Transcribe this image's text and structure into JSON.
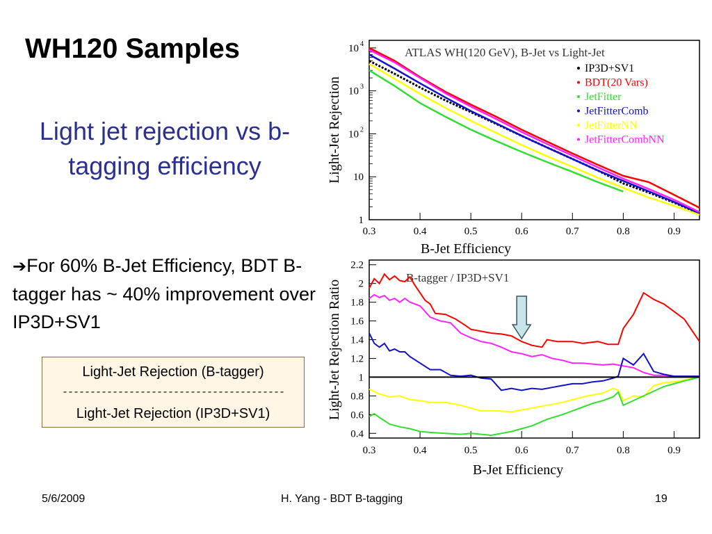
{
  "slide": {
    "title": "WH120 Samples",
    "subtitle": "Light jet rejection vs b-tagging efficiency",
    "note_arrow": "➔",
    "note_text": "For 60% B-Jet Efficiency, BDT B-tagger has ~ 40% improvement over IP3D+SV1",
    "formula": {
      "numerator": "Light-Jet Rejection (B-tagger)",
      "bar": "----------------------------------------",
      "denominator": "Light-Jet Rejection (IP3D+SV1)"
    },
    "footer": {
      "date": "5/6/2009",
      "center": "H. Yang - BDT B-tagging",
      "page": "19"
    }
  },
  "chart_data": [
    {
      "type": "line",
      "title": "ATLAS WH(120 GeV), B-Jet vs Light-Jet",
      "xlabel": "B-Jet Efficiency",
      "ylabel": "Light-Jet Rejection",
      "xlim": [
        0.3,
        0.95
      ],
      "ylim": [
        1,
        15000
      ],
      "yscale": "log",
      "xticks": [
        "0.3",
        "0.4",
        "0.5",
        "0.6",
        "0.7",
        "0.8",
        "0.9"
      ],
      "xtick_values": [
        0.3,
        0.4,
        0.5,
        0.6,
        0.7,
        0.8,
        0.9
      ],
      "yticks": [
        {
          "value": 1,
          "base": "1",
          "exp": ""
        },
        {
          "value": 10,
          "base": "10",
          "exp": ""
        },
        {
          "value": 100,
          "base": "10",
          "exp": "2"
        },
        {
          "value": 1000,
          "base": "10",
          "exp": "3"
        },
        {
          "value": 10000,
          "base": "10",
          "exp": "4"
        }
      ],
      "legend_position": "top-right",
      "series": [
        {
          "name": "IP3D+SV1",
          "color": "#000000",
          "x": [
            0.3,
            0.35,
            0.4,
            0.45,
            0.5,
            0.55,
            0.6,
            0.65,
            0.7,
            0.75,
            0.8,
            0.85,
            0.9,
            0.95
          ],
          "y": [
            5000,
            2500,
            1200,
            600,
            320,
            170,
            90,
            48,
            26,
            14,
            7,
            4.3,
            2.5,
            1.4
          ]
        },
        {
          "name": "BDT(20 Vars)",
          "color": "#ff0000",
          "x": [
            0.3,
            0.35,
            0.4,
            0.45,
            0.5,
            0.55,
            0.6,
            0.65,
            0.7,
            0.75,
            0.8,
            0.85,
            0.9,
            0.95
          ],
          "y": [
            10000,
            5000,
            2100,
            950,
            480,
            250,
            125,
            66,
            35,
            19,
            10.5,
            7.5,
            3.8,
            1.9
          ]
        },
        {
          "name": "JetFitter",
          "color": "#33dd33",
          "x": [
            0.3,
            0.35,
            0.4,
            0.45,
            0.5,
            0.55,
            0.6,
            0.65,
            0.7,
            0.75,
            0.8
          ],
          "y": [
            3000,
            1300,
            520,
            250,
            125,
            68,
            38,
            22,
            13,
            7.5,
            4.5
          ]
        },
        {
          "name": "JetFitterComb",
          "color": "#1111cc",
          "x": [
            0.3,
            0.35,
            0.4,
            0.45,
            0.5,
            0.55,
            0.6,
            0.65,
            0.7,
            0.75,
            0.8,
            0.85,
            0.9,
            0.95
          ],
          "y": [
            7000,
            3300,
            1500,
            700,
            340,
            175,
            90,
            48,
            26,
            14,
            8,
            4.6,
            2.6,
            1.4
          ]
        },
        {
          "name": "JetFitterNN",
          "color": "#ffff00",
          "x": [
            0.3,
            0.35,
            0.4,
            0.45,
            0.5,
            0.55,
            0.6,
            0.65,
            0.7,
            0.75,
            0.8,
            0.85,
            0.9,
            0.95
          ],
          "y": [
            4200,
            1900,
            850,
            400,
            200,
            105,
            55,
            30,
            17,
            9.5,
            5.5,
            3.3,
            2.1,
            1.3
          ]
        },
        {
          "name": "JetFitterCombNN",
          "color": "#ff22ff",
          "x": [
            0.3,
            0.35,
            0.4,
            0.45,
            0.5,
            0.55,
            0.6,
            0.65,
            0.7,
            0.75,
            0.8,
            0.85,
            0.9,
            0.95
          ],
          "y": [
            9000,
            4600,
            2000,
            880,
            430,
            220,
            110,
            58,
            31,
            16.5,
            9,
            5.2,
            2.9,
            1.5
          ]
        }
      ]
    },
    {
      "type": "line",
      "title": "B-tagger / IP3D+SV1",
      "xlabel": "B-Jet Efficiency",
      "ylabel": "Light-Jet Rejection Ratio",
      "xlim": [
        0.3,
        0.95
      ],
      "ylim": [
        0.35,
        2.25
      ],
      "xticks": [
        "0.3",
        "0.4",
        "0.5",
        "0.6",
        "0.7",
        "0.8",
        "0.9"
      ],
      "xtick_values": [
        0.3,
        0.4,
        0.5,
        0.6,
        0.7,
        0.8,
        0.9
      ],
      "yticks": [
        "0.4",
        "0.6",
        "0.8",
        "1",
        "1.2",
        "1.4",
        "1.6",
        "1.8",
        "2",
        "2.2"
      ],
      "ytick_values": [
        0.4,
        0.6,
        0.8,
        1.0,
        1.2,
        1.4,
        1.6,
        1.8,
        2.0,
        2.2
      ],
      "reference_line": 1.0,
      "arrow_marker_x": 0.6,
      "series": [
        {
          "name": "BDT(20 Vars)",
          "color": "#ff0000",
          "x": [
            0.3,
            0.31,
            0.32,
            0.33,
            0.34,
            0.35,
            0.36,
            0.37,
            0.38,
            0.39,
            0.4,
            0.41,
            0.42,
            0.43,
            0.45,
            0.47,
            0.49,
            0.5,
            0.52,
            0.54,
            0.56,
            0.58,
            0.6,
            0.62,
            0.64,
            0.65,
            0.67,
            0.7,
            0.72,
            0.75,
            0.77,
            0.79,
            0.8,
            0.82,
            0.84,
            0.86,
            0.88,
            0.9,
            0.92,
            0.95
          ],
          "y": [
            1.95,
            2.05,
            2.0,
            2.1,
            2.04,
            2.08,
            2.03,
            2.02,
            2.07,
            1.98,
            1.9,
            1.82,
            1.78,
            1.68,
            1.67,
            1.62,
            1.55,
            1.51,
            1.49,
            1.47,
            1.46,
            1.44,
            1.38,
            1.34,
            1.32,
            1.4,
            1.38,
            1.38,
            1.36,
            1.38,
            1.35,
            1.35,
            1.52,
            1.67,
            1.9,
            1.83,
            1.78,
            1.7,
            1.62,
            1.38
          ]
        },
        {
          "name": "JetFitterCombNN",
          "color": "#ff22ff",
          "x": [
            0.3,
            0.31,
            0.32,
            0.33,
            0.34,
            0.35,
            0.36,
            0.37,
            0.38,
            0.39,
            0.4,
            0.42,
            0.44,
            0.46,
            0.48,
            0.5,
            0.52,
            0.54,
            0.56,
            0.58,
            0.6,
            0.62,
            0.64,
            0.66,
            0.68,
            0.7,
            0.72,
            0.74,
            0.76,
            0.78,
            0.8,
            0.82,
            0.84,
            0.86,
            0.88,
            0.9,
            0.92,
            0.95
          ],
          "y": [
            1.84,
            1.88,
            1.85,
            1.87,
            1.82,
            1.84,
            1.8,
            1.84,
            1.8,
            1.78,
            1.76,
            1.64,
            1.6,
            1.58,
            1.47,
            1.42,
            1.38,
            1.36,
            1.32,
            1.27,
            1.25,
            1.22,
            1.24,
            1.2,
            1.18,
            1.15,
            1.15,
            1.14,
            1.13,
            1.14,
            1.12,
            1.1,
            1.05,
            1.02,
            1.02,
            1.01,
            1.01,
            1.01
          ]
        },
        {
          "name": "JetFitterComb",
          "color": "#1111cc",
          "x": [
            0.3,
            0.31,
            0.32,
            0.33,
            0.34,
            0.35,
            0.36,
            0.37,
            0.38,
            0.4,
            0.42,
            0.44,
            0.46,
            0.48,
            0.5,
            0.52,
            0.54,
            0.56,
            0.58,
            0.6,
            0.62,
            0.64,
            0.66,
            0.68,
            0.7,
            0.72,
            0.74,
            0.76,
            0.78,
            0.79,
            0.8,
            0.82,
            0.84,
            0.86,
            0.88,
            0.9,
            0.92,
            0.95
          ],
          "y": [
            1.47,
            1.36,
            1.32,
            1.36,
            1.28,
            1.3,
            1.27,
            1.27,
            1.22,
            1.15,
            1.08,
            1.08,
            1.02,
            1.01,
            1.02,
            0.99,
            0.98,
            0.86,
            0.88,
            0.86,
            0.88,
            0.87,
            0.89,
            0.91,
            0.93,
            0.93,
            0.95,
            0.96,
            0.99,
            1.01,
            1.2,
            1.13,
            1.25,
            1.06,
            1.03,
            1.01,
            1.01,
            1.01
          ]
        },
        {
          "name": "JetFitterNN",
          "color": "#ffff00",
          "x": [
            0.3,
            0.32,
            0.34,
            0.36,
            0.38,
            0.4,
            0.42,
            0.45,
            0.48,
            0.5,
            0.52,
            0.55,
            0.58,
            0.6,
            0.62,
            0.65,
            0.68,
            0.7,
            0.73,
            0.76,
            0.78,
            0.79,
            0.8,
            0.82,
            0.84,
            0.86,
            0.88,
            0.9,
            0.92,
            0.95
          ],
          "y": [
            0.87,
            0.82,
            0.79,
            0.8,
            0.76,
            0.75,
            0.73,
            0.73,
            0.7,
            0.67,
            0.64,
            0.64,
            0.63,
            0.65,
            0.67,
            0.7,
            0.73,
            0.76,
            0.8,
            0.83,
            0.88,
            0.86,
            0.75,
            0.8,
            0.79,
            0.91,
            0.94,
            0.95,
            0.97,
            1.0
          ]
        },
        {
          "name": "JetFitter",
          "color": "#33dd33",
          "x": [
            0.3,
            0.31,
            0.32,
            0.34,
            0.36,
            0.38,
            0.4,
            0.42,
            0.45,
            0.48,
            0.5,
            0.52,
            0.54,
            0.56,
            0.58,
            0.6,
            0.62,
            0.65,
            0.68,
            0.7,
            0.72,
            0.74,
            0.76,
            0.78,
            0.79,
            0.8,
            0.82,
            0.84,
            0.86,
            0.88,
            0.9,
            0.92,
            0.95
          ],
          "y": [
            0.58,
            0.61,
            0.57,
            0.5,
            0.47,
            0.45,
            0.42,
            0.41,
            0.4,
            0.39,
            0.4,
            0.39,
            0.38,
            0.4,
            0.42,
            0.45,
            0.48,
            0.55,
            0.6,
            0.64,
            0.68,
            0.72,
            0.75,
            0.79,
            0.84,
            0.7,
            0.75,
            0.8,
            0.85,
            0.9,
            0.93,
            0.96,
            1.0
          ]
        }
      ]
    }
  ]
}
